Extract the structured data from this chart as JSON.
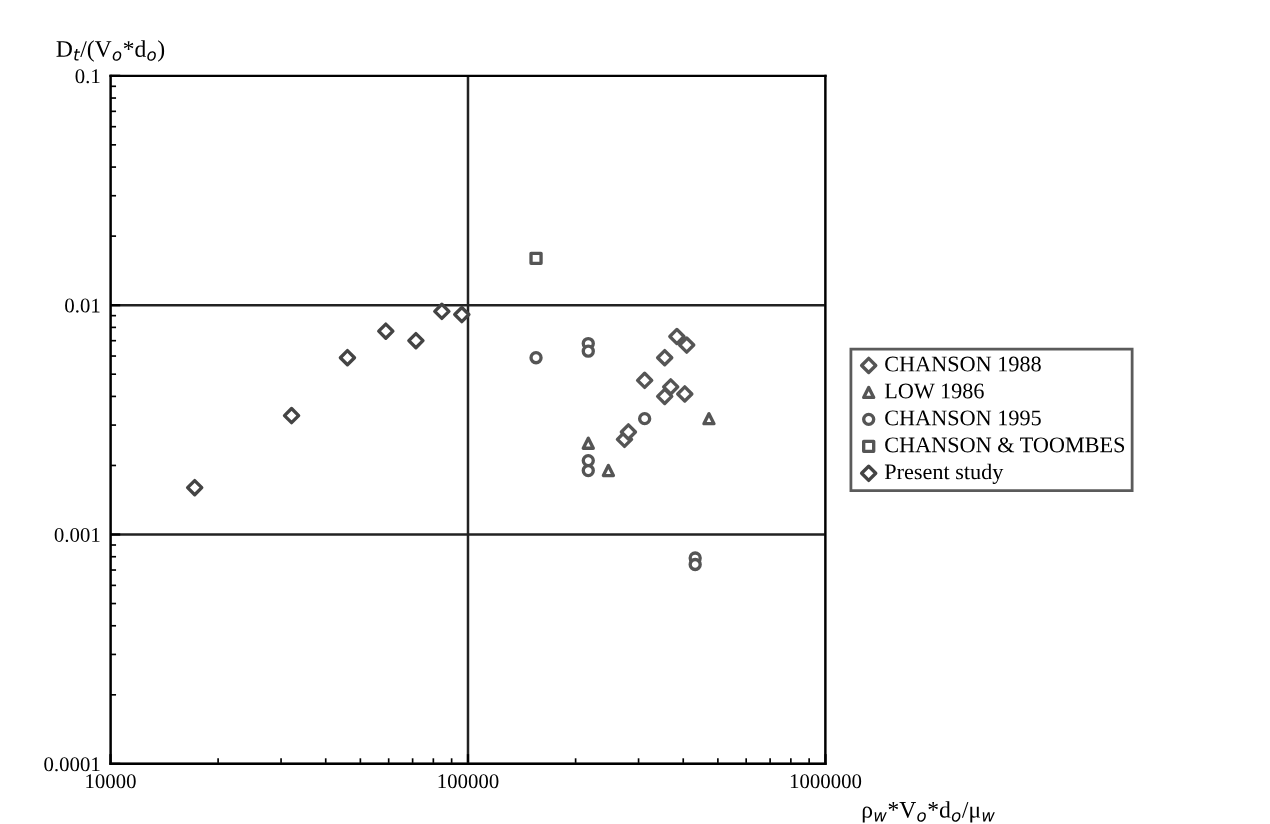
{
  "chart_data": {
    "type": "scatter",
    "xlabel": "ρ$_{w}$*V$_{o}$*d$_{o}$/μ$_{w}$",
    "ylabel": "D$_{t}$/(V$_{o}$*d$_{o}$)",
    "log": "xy",
    "xlim": [
      10000,
      1000000
    ],
    "ylim": [
      0.0001,
      0.1
    ],
    "xticks": [
      10000,
      100000,
      1000000
    ],
    "yticks": [
      0.0001,
      0.001,
      0.01,
      0.1
    ],
    "grid": true,
    "legend": "right",
    "series": [
      {
        "name": "CHANSON 1988",
        "color": "#555555",
        "marker": "diamond",
        "x": [
          274000,
          281000,
          312000,
          355000,
          355000,
          369000,
          404000,
          384000,
          409000
        ],
        "values": [
          0.0026,
          0.0028,
          0.0047,
          0.0059,
          0.004,
          0.0044,
          0.0041,
          0.0073,
          0.0067
        ]
      },
      {
        "name": "LOW 1986",
        "color": "#555555",
        "marker": "triangle",
        "x": [
          217000,
          247000,
          472000
        ],
        "values": [
          0.0025,
          0.0019,
          0.0032
        ]
      },
      {
        "name": "CHANSON 1995",
        "color": "#555555",
        "marker": "circle",
        "x": [
          155000,
          217000,
          217000,
          217000,
          217000,
          312000,
          432000,
          432000
        ],
        "values": [
          0.0059,
          0.0068,
          0.0063,
          0.0021,
          0.0019,
          0.0032,
          0.00079,
          0.00074
        ]
      },
      {
        "name": "CHANSON & TOOMBES",
        "color": "#555555",
        "marker": "square",
        "x": [
          155000
        ],
        "values": [
          0.016
        ]
      },
      {
        "name": "Present study",
        "color": "#444444",
        "marker": "diamond",
        "x": [
          17200,
          32100,
          46000,
          58900,
          71500,
          84500,
          96100
        ],
        "values": [
          0.0016,
          0.0033,
          0.0059,
          0.0077,
          0.007,
          0.0094,
          0.0091
        ]
      }
    ]
  }
}
